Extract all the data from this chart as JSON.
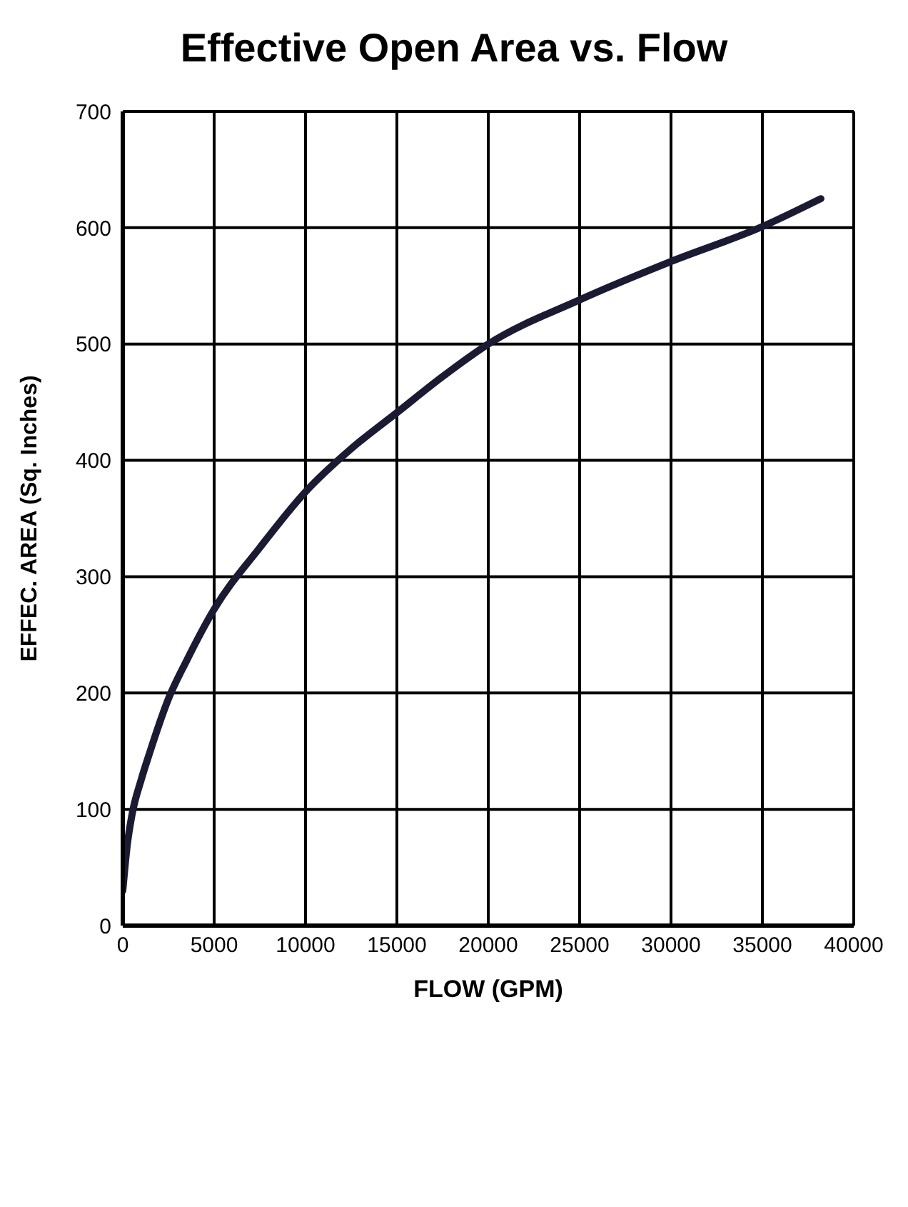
{
  "chart_data": {
    "type": "line",
    "title": "Effective Open Area vs. Flow",
    "xlabel": "FLOW (GPM)",
    "ylabel": "EFFEC. AREA (Sq. Inches)",
    "x": [
      0,
      250,
      500,
      1000,
      1500,
      2500,
      3500,
      5000,
      7500,
      10000,
      12500,
      15000,
      17500,
      20000,
      25000,
      30000,
      35000,
      38200
    ],
    "series": [
      {
        "color": "#1a1a33",
        "values": [
          30,
          70,
          95,
          125,
          150,
          195,
          228,
          272,
          325,
          373,
          410,
          441,
          472,
          500,
          538,
          571,
          601,
          625
        ]
      }
    ],
    "xlim": [
      0,
      40000
    ],
    "xticks": [
      0,
      5000,
      10000,
      15000,
      20000,
      25000,
      30000,
      35000,
      40000
    ],
    "ylim": [
      0,
      700
    ],
    "yticks": [
      0,
      100,
      200,
      300,
      400,
      500,
      600,
      700
    ],
    "grid": true,
    "marker": "none",
    "line_style": "solid"
  }
}
